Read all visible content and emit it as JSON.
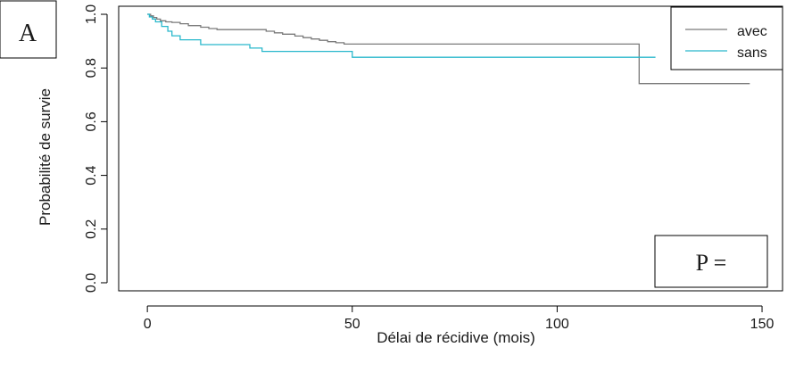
{
  "chart_data": {
    "type": "line",
    "subtype": "step",
    "panel_label": "A",
    "xlabel": "Délai de récidive (mois)",
    "ylabel": "Probabilité de survie",
    "xlim": [
      -7,
      155
    ],
    "ylim": [
      -0.03,
      1.03
    ],
    "x_ticks": [
      0,
      50,
      100,
      150
    ],
    "y_ticks": [
      0.0,
      0.2,
      0.4,
      0.6,
      0.8,
      1.0
    ],
    "x_tick_labels": [
      "0",
      "50",
      "100",
      "150"
    ],
    "y_tick_labels": [
      "0.0",
      "0.2",
      "0.4",
      "0.6",
      "0.8",
      "1.0"
    ],
    "grid": false,
    "legend": {
      "position": "top-right",
      "entries": [
        "avec",
        "sans"
      ]
    },
    "annotation": "P =",
    "series": [
      {
        "name": "avec",
        "color": "#7a7a7a",
        "x": [
          0,
          0.8,
          1.5,
          2.3,
          3.2,
          4.5,
          6,
          8,
          10,
          13,
          15,
          17,
          29,
          31,
          33,
          36,
          38,
          40,
          42,
          44,
          46,
          48,
          120,
          147
        ],
        "y": [
          1.0,
          0.994,
          0.988,
          0.982,
          0.976,
          0.972,
          0.97,
          0.965,
          0.958,
          0.952,
          0.947,
          0.943,
          0.937,
          0.931,
          0.926,
          0.919,
          0.913,
          0.908,
          0.903,
          0.898,
          0.894,
          0.889,
          0.742,
          0.742
        ]
      },
      {
        "name": "sans",
        "color": "#29b8cc",
        "x": [
          0,
          0.5,
          1.2,
          2,
          3.5,
          5,
          6,
          8,
          13,
          25,
          28,
          50,
          124
        ],
        "y": [
          1.0,
          0.99,
          0.982,
          0.972,
          0.955,
          0.937,
          0.92,
          0.905,
          0.887,
          0.874,
          0.862,
          0.84,
          0.84
        ]
      }
    ]
  }
}
